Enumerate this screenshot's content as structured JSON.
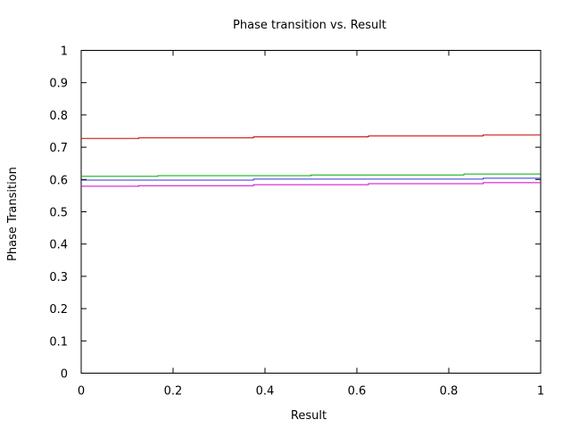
{
  "chart_data": {
    "type": "line",
    "title": "Phase transition vs. Result",
    "xlabel": "Result",
    "ylabel": "Phase Transition",
    "xlim": [
      0,
      1
    ],
    "ylim": [
      0,
      1
    ],
    "x_ticks": [
      "0",
      "0.2",
      "0.4",
      "0.6",
      "0.8",
      "1"
    ],
    "y_ticks": [
      "0",
      "0.1",
      "0.2",
      "0.3",
      "0.4",
      "0.5",
      "0.6",
      "0.7",
      "0.8",
      "0.9",
      "1"
    ],
    "grid": false,
    "legend": "none",
    "series": [
      {
        "color": "#cc0000",
        "points": [
          [
            0,
            0.727
          ],
          [
            0.125,
            0.727
          ],
          [
            0.125,
            0.729
          ],
          [
            0.375,
            0.729
          ],
          [
            0.375,
            0.732
          ],
          [
            0.625,
            0.732
          ],
          [
            0.625,
            0.735
          ],
          [
            0.875,
            0.735
          ],
          [
            0.875,
            0.738
          ],
          [
            1,
            0.738
          ]
        ]
      },
      {
        "color": "#00aa00",
        "points": [
          [
            0,
            0.61
          ],
          [
            0.167,
            0.61
          ],
          [
            0.167,
            0.612
          ],
          [
            0.5,
            0.612
          ],
          [
            0.5,
            0.614
          ],
          [
            0.833,
            0.614
          ],
          [
            0.833,
            0.617
          ],
          [
            1,
            0.617
          ]
        ]
      },
      {
        "color": "#3333dd",
        "points": [
          [
            0,
            0.598
          ],
          [
            0.375,
            0.598
          ],
          [
            0.375,
            0.601
          ],
          [
            0.875,
            0.601
          ],
          [
            0.875,
            0.604
          ],
          [
            1,
            0.604
          ]
        ]
      },
      {
        "color": "#cc00cc",
        "points": [
          [
            0,
            0.579
          ],
          [
            0.125,
            0.579
          ],
          [
            0.125,
            0.581
          ],
          [
            0.375,
            0.581
          ],
          [
            0.375,
            0.584
          ],
          [
            0.625,
            0.584
          ],
          [
            0.625,
            0.587
          ],
          [
            0.875,
            0.587
          ],
          [
            0.875,
            0.59
          ],
          [
            1,
            0.59
          ]
        ]
      }
    ]
  }
}
